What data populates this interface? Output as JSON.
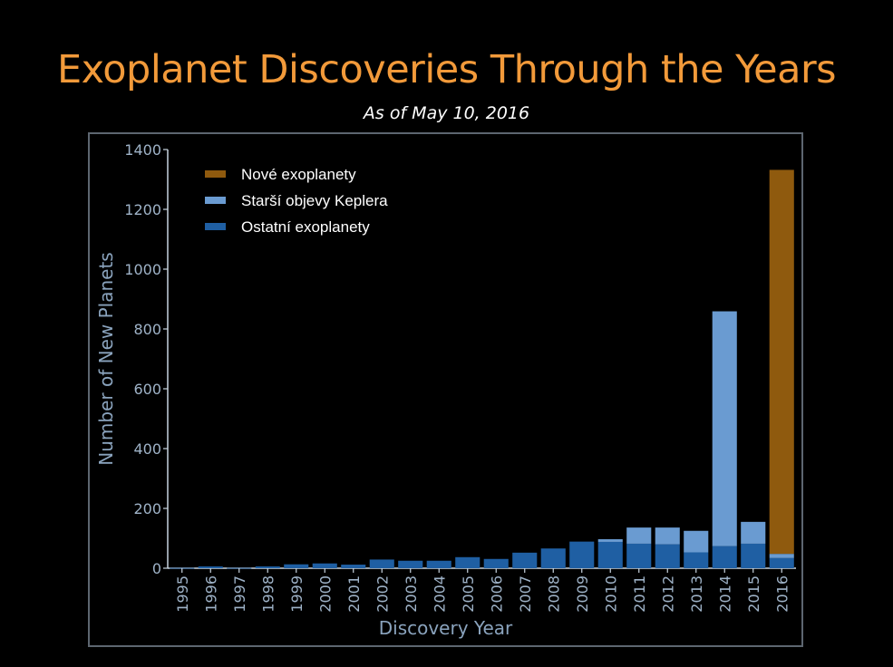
{
  "title": "Exoplanet Discoveries Through the Years",
  "subtitle": "As of May 10, 2016",
  "chart_data": {
    "type": "bar",
    "stacked": true,
    "title": "Exoplanet Discoveries Through the Years",
    "subtitle": "As of May 10, 2016",
    "xlabel": "Discovery Year",
    "ylabel": "Number of New Planets",
    "ylim": [
      0,
      1400
    ],
    "yticks": [
      "0",
      "200",
      "400",
      "600",
      "800",
      "1000",
      "1200",
      "1400"
    ],
    "categories": [
      "1995",
      "1996",
      "1997",
      "1998",
      "1999",
      "2000",
      "2001",
      "2002",
      "2003",
      "2004",
      "2005",
      "2006",
      "2007",
      "2008",
      "2009",
      "2010",
      "2011",
      "2012",
      "2013",
      "2014",
      "2015",
      "2016"
    ],
    "series": [
      {
        "name": "Ostatní exoplanety",
        "color": "#1f5fa3",
        "values": [
          1,
          6,
          1,
          6,
          13,
          16,
          12,
          29,
          25,
          25,
          37,
          31,
          52,
          66,
          89,
          88,
          82,
          80,
          53,
          74,
          82,
          34
        ]
      },
      {
        "name": "Starší objevy Keplera",
        "color": "#6a9bd1",
        "values": [
          0,
          0,
          0,
          0,
          0,
          0,
          0,
          0,
          0,
          0,
          0,
          0,
          0,
          0,
          0,
          9,
          54,
          56,
          72,
          785,
          73,
          14
        ]
      },
      {
        "name": "Nové exoplanety",
        "color": "#8f5a0e",
        "values": [
          0,
          0,
          0,
          0,
          0,
          0,
          0,
          0,
          0,
          0,
          0,
          0,
          0,
          0,
          0,
          0,
          0,
          0,
          0,
          0,
          0,
          1284
        ]
      }
    ],
    "legend": [
      "Nové exoplanety",
      "Starší objevy Keplera",
      "Ostatní exoplanety"
    ],
    "legend_position": "top-left",
    "grid": false
  }
}
